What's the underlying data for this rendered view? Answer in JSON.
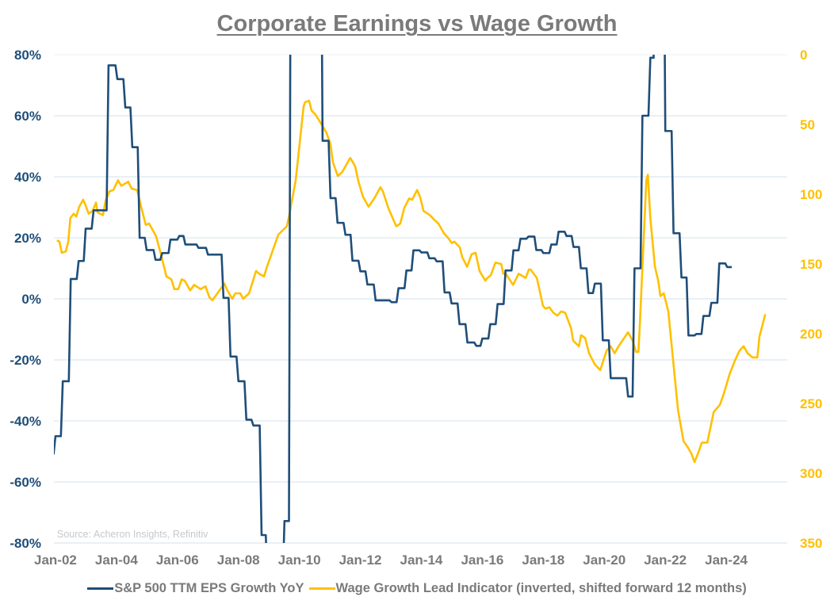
{
  "chart_data": {
    "type": "line",
    "title": "Corporate Earnings vs Wage Growth",
    "source": "Source: Acheron Insights, Refinitiv",
    "x_ticks": [
      "Jan-02",
      "Jan-04",
      "Jan-06",
      "Jan-08",
      "Jan-10",
      "Jan-12",
      "Jan-14",
      "Jan-16",
      "Jan-18",
      "Jan-20",
      "Jan-22",
      "Jan-24"
    ],
    "x_tick_years": [
      2002,
      2004,
      2006,
      2008,
      2010,
      2012,
      2014,
      2016,
      2018,
      2020,
      2022,
      2024
    ],
    "xlim": [
      2001.95,
      2026.0
    ],
    "y_left": {
      "ticks": [
        "80%",
        "60%",
        "40%",
        "20%",
        "0%",
        "-20%",
        "-40%",
        "-60%",
        "-80%"
      ],
      "tick_values": [
        80,
        60,
        40,
        20,
        0,
        -20,
        -40,
        -60,
        -80
      ],
      "range": [
        -80,
        80
      ],
      "color": "#1f4e79"
    },
    "y_right": {
      "ticks": [
        "0",
        "50",
        "100",
        "150",
        "200",
        "250",
        "300",
        "350"
      ],
      "tick_values": [
        0,
        50,
        100,
        150,
        200,
        250,
        300,
        350
      ],
      "range": [
        0,
        350
      ],
      "inverted": true,
      "color": "#ffc000"
    },
    "grid": true,
    "legend_position": "bottom",
    "series": [
      {
        "name": "S&P 500 TTM EPS Growth YoY",
        "axis": "left",
        "color": "#1f4e79",
        "style": "step",
        "end_year": 2024.18,
        "steps": [
          [
            2001.95,
            -51
          ],
          [
            2001.97,
            -45
          ],
          [
            2002.21,
            -27
          ],
          [
            2002.47,
            6.5
          ],
          [
            2002.73,
            12.4
          ],
          [
            2002.96,
            23
          ],
          [
            2003.22,
            29
          ],
          [
            2003.71,
            76.5
          ],
          [
            2004.0,
            72
          ],
          [
            2004.26,
            62.7
          ],
          [
            2004.49,
            49.7
          ],
          [
            2004.73,
            20
          ],
          [
            2004.96,
            16
          ],
          [
            2005.25,
            12.8
          ],
          [
            2005.47,
            15
          ],
          [
            2005.74,
            19.4
          ],
          [
            2006.03,
            20.6
          ],
          [
            2006.23,
            17.8
          ],
          [
            2006.66,
            16.7
          ],
          [
            2006.97,
            14.5
          ],
          [
            2007.48,
            0.3
          ],
          [
            2007.71,
            -18.9
          ],
          [
            2007.97,
            -27
          ],
          [
            2008.23,
            -39.6
          ],
          [
            2008.46,
            -41.5
          ],
          [
            2008.73,
            -77.4
          ],
          [
            2008.93,
            -95
          ],
          [
            2009.48,
            -72.8
          ],
          [
            2009.69,
            150
          ],
          [
            2010.73,
            51.8
          ],
          [
            2010.99,
            33
          ],
          [
            2011.22,
            24.9
          ],
          [
            2011.48,
            21
          ],
          [
            2011.71,
            12.5
          ],
          [
            2011.97,
            9
          ],
          [
            2012.2,
            4.7
          ],
          [
            2012.47,
            -0.5
          ],
          [
            2012.99,
            -1.1
          ],
          [
            2013.22,
            3.5
          ],
          [
            2013.48,
            9.3
          ],
          [
            2013.71,
            15.9
          ],
          [
            2013.97,
            15.2
          ],
          [
            2014.23,
            13.3
          ],
          [
            2014.47,
            12.3
          ],
          [
            2014.73,
            2.1
          ],
          [
            2014.96,
            -1.5
          ],
          [
            2015.22,
            -8.3
          ],
          [
            2015.48,
            -14.3
          ],
          [
            2015.77,
            -15.4
          ],
          [
            2015.97,
            -13
          ],
          [
            2016.23,
            -8.3
          ],
          [
            2016.47,
            -1.7
          ],
          [
            2016.73,
            9.3
          ],
          [
            2016.99,
            15.9
          ],
          [
            2017.22,
            19.7
          ],
          [
            2017.48,
            20.4
          ],
          [
            2017.74,
            16
          ],
          [
            2017.97,
            15
          ],
          [
            2018.23,
            17.8
          ],
          [
            2018.47,
            22
          ],
          [
            2018.73,
            20.6
          ],
          [
            2018.96,
            17
          ],
          [
            2019.2,
            10
          ],
          [
            2019.45,
            1.9
          ],
          [
            2019.66,
            5
          ],
          [
            2019.92,
            -13.6
          ],
          [
            2020.18,
            -26
          ],
          [
            2020.75,
            -32
          ],
          [
            2020.96,
            10
          ],
          [
            2021.22,
            60
          ],
          [
            2021.48,
            79
          ],
          [
            2021.65,
            150
          ],
          [
            2021.97,
            55
          ],
          [
            2022.24,
            21.5
          ],
          [
            2022.5,
            7
          ],
          [
            2022.73,
            -12
          ],
          [
            2022.99,
            -11.5
          ],
          [
            2023.22,
            -5.6
          ],
          [
            2023.48,
            -1.3
          ],
          [
            2023.74,
            11.6
          ],
          [
            2024.0,
            10.4
          ]
        ]
      },
      {
        "name": "Wage Growth Lead Indicator (inverted, shifted forward 12 months)",
        "axis": "right",
        "color": "#ffc000",
        "style": "line",
        "points": [
          [
            2002.05,
            133
          ],
          [
            2002.13,
            134
          ],
          [
            2002.21,
            142
          ],
          [
            2002.34,
            141
          ],
          [
            2002.42,
            134
          ],
          [
            2002.49,
            117
          ],
          [
            2002.6,
            114
          ],
          [
            2002.68,
            116
          ],
          [
            2002.78,
            109
          ],
          [
            2002.91,
            104
          ],
          [
            2002.99,
            108
          ],
          [
            2003.09,
            114
          ],
          [
            2003.22,
            112
          ],
          [
            2003.33,
            106
          ],
          [
            2003.38,
            113
          ],
          [
            2003.56,
            115
          ],
          [
            2003.64,
            105
          ],
          [
            2003.77,
            98
          ],
          [
            2003.9,
            97
          ],
          [
            2004.05,
            90
          ],
          [
            2004.16,
            94
          ],
          [
            2004.39,
            91
          ],
          [
            2004.5,
            96
          ],
          [
            2004.68,
            97
          ],
          [
            2004.81,
            109
          ],
          [
            2004.96,
            122
          ],
          [
            2005.07,
            121
          ],
          [
            2005.3,
            130
          ],
          [
            2005.46,
            143
          ],
          [
            2005.64,
            159
          ],
          [
            2005.8,
            161
          ],
          [
            2005.9,
            168
          ],
          [
            2006.03,
            168
          ],
          [
            2006.14,
            161
          ],
          [
            2006.24,
            162
          ],
          [
            2006.42,
            169
          ],
          [
            2006.55,
            165
          ],
          [
            2006.76,
            168
          ],
          [
            2006.92,
            166
          ],
          [
            2007.05,
            174
          ],
          [
            2007.15,
            176
          ],
          [
            2007.25,
            173
          ],
          [
            2007.38,
            169
          ],
          [
            2007.54,
            164
          ],
          [
            2007.64,
            169
          ],
          [
            2007.8,
            175
          ],
          [
            2007.9,
            171
          ],
          [
            2008.06,
            171
          ],
          [
            2008.16,
            175
          ],
          [
            2008.35,
            171
          ],
          [
            2008.58,
            155
          ],
          [
            2008.68,
            157
          ],
          [
            2008.84,
            159
          ],
          [
            2008.94,
            152
          ],
          [
            2009.18,
            137
          ],
          [
            2009.31,
            129
          ],
          [
            2009.59,
            123
          ],
          [
            2009.67,
            115
          ],
          [
            2009.88,
            90
          ],
          [
            2010.14,
            37
          ],
          [
            2010.19,
            34
          ],
          [
            2010.32,
            33
          ],
          [
            2010.4,
            40
          ],
          [
            2010.53,
            43
          ],
          [
            2010.76,
            51
          ],
          [
            2010.89,
            56
          ],
          [
            2011.02,
            64
          ],
          [
            2011.1,
            77
          ],
          [
            2011.26,
            87
          ],
          [
            2011.41,
            84
          ],
          [
            2011.67,
            74
          ],
          [
            2011.83,
            80
          ],
          [
            2011.94,
            91
          ],
          [
            2012.09,
            102
          ],
          [
            2012.27,
            109
          ],
          [
            2012.46,
            103
          ],
          [
            2012.66,
            95
          ],
          [
            2012.74,
            98
          ],
          [
            2012.92,
            110
          ],
          [
            2013.18,
            123
          ],
          [
            2013.31,
            121
          ],
          [
            2013.44,
            110
          ],
          [
            2013.6,
            103
          ],
          [
            2013.7,
            104
          ],
          [
            2013.86,
            97
          ],
          [
            2013.96,
            102
          ],
          [
            2014.07,
            112
          ],
          [
            2014.28,
            115
          ],
          [
            2014.41,
            118
          ],
          [
            2014.56,
            121
          ],
          [
            2014.74,
            128
          ],
          [
            2014.87,
            131
          ],
          [
            2015.0,
            135
          ],
          [
            2015.08,
            134
          ],
          [
            2015.26,
            138
          ],
          [
            2015.34,
            145
          ],
          [
            2015.5,
            152
          ],
          [
            2015.65,
            143
          ],
          [
            2015.78,
            142
          ],
          [
            2015.91,
            155
          ],
          [
            2016.1,
            162
          ],
          [
            2016.17,
            160
          ],
          [
            2016.28,
            158
          ],
          [
            2016.43,
            149
          ],
          [
            2016.62,
            150
          ],
          [
            2016.69,
            157
          ],
          [
            2016.77,
            157
          ],
          [
            2017.01,
            165
          ],
          [
            2017.19,
            157
          ],
          [
            2017.42,
            160
          ],
          [
            2017.53,
            154
          ],
          [
            2017.58,
            154
          ],
          [
            2017.79,
            160
          ],
          [
            2017.99,
            180
          ],
          [
            2018.07,
            182
          ],
          [
            2018.2,
            181
          ],
          [
            2018.33,
            185
          ],
          [
            2018.46,
            187
          ],
          [
            2018.59,
            184
          ],
          [
            2018.72,
            185
          ],
          [
            2018.91,
            196
          ],
          [
            2018.98,
            205
          ],
          [
            2019.17,
            209
          ],
          [
            2019.24,
            201
          ],
          [
            2019.37,
            203
          ],
          [
            2019.5,
            214
          ],
          [
            2019.69,
            222
          ],
          [
            2019.87,
            226
          ],
          [
            2020.08,
            212
          ],
          [
            2020.21,
            209
          ],
          [
            2020.34,
            214
          ],
          [
            2020.47,
            209
          ],
          [
            2020.78,
            199
          ],
          [
            2020.93,
            205
          ],
          [
            2021.04,
            213
          ],
          [
            2021.12,
            213
          ],
          [
            2021.17,
            192
          ],
          [
            2021.38,
            90
          ],
          [
            2021.43,
            86
          ],
          [
            2021.51,
            117
          ],
          [
            2021.66,
            152
          ],
          [
            2021.77,
            162
          ],
          [
            2021.84,
            173
          ],
          [
            2021.95,
            171
          ],
          [
            2022.1,
            184
          ],
          [
            2022.23,
            213
          ],
          [
            2022.42,
            255
          ],
          [
            2022.6,
            277
          ],
          [
            2022.73,
            281
          ],
          [
            2022.86,
            286
          ],
          [
            2022.96,
            292
          ],
          [
            2023.07,
            286
          ],
          [
            2023.2,
            278
          ],
          [
            2023.38,
            278
          ],
          [
            2023.59,
            256
          ],
          [
            2023.79,
            251
          ],
          [
            2023.92,
            243
          ],
          [
            2024.11,
            229
          ],
          [
            2024.29,
            219
          ],
          [
            2024.44,
            212
          ],
          [
            2024.57,
            209
          ],
          [
            2024.7,
            214
          ],
          [
            2024.86,
            217
          ],
          [
            2025.02,
            217
          ],
          [
            2025.09,
            202
          ],
          [
            2025.28,
            186
          ]
        ]
      }
    ]
  }
}
